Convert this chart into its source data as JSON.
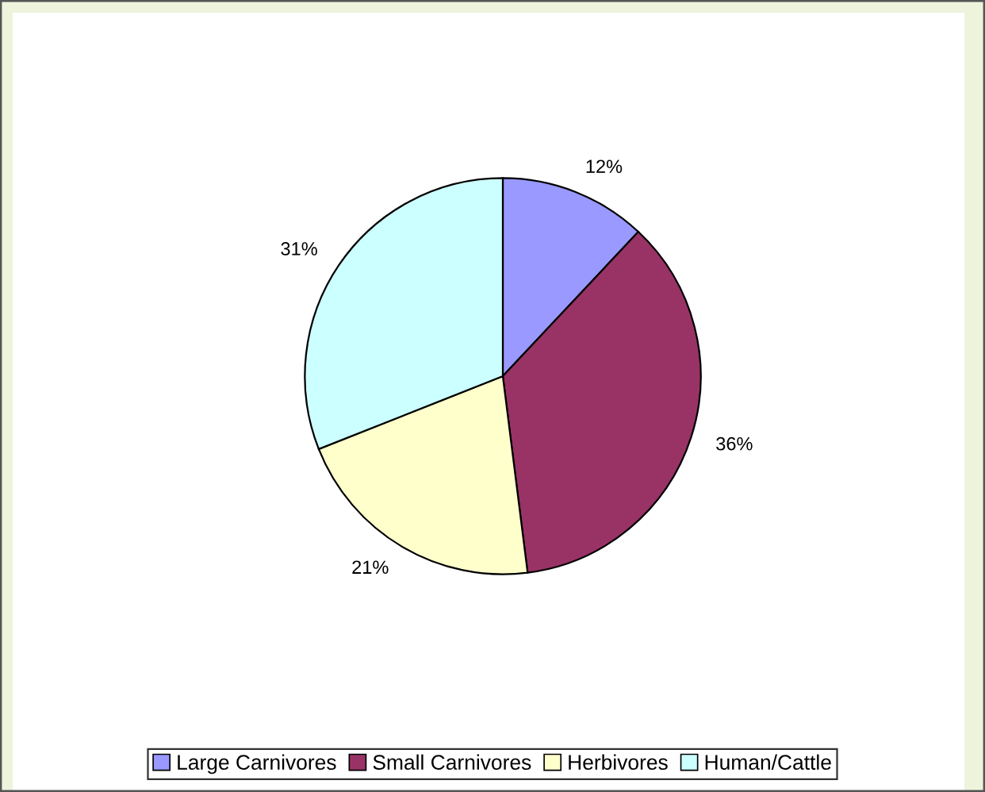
{
  "chart_data": {
    "type": "pie",
    "categories": [
      "Large Carnivores",
      "Small Carnivores",
      "Herbivores",
      "Human/Cattle"
    ],
    "values": [
      12,
      36,
      21,
      31
    ],
    "value_labels": [
      "12%",
      "36%",
      "21%",
      "31%"
    ],
    "colors": [
      "#9999ff",
      "#993366",
      "#ffffcc",
      "#ccffff"
    ],
    "legend": "bottom"
  }
}
